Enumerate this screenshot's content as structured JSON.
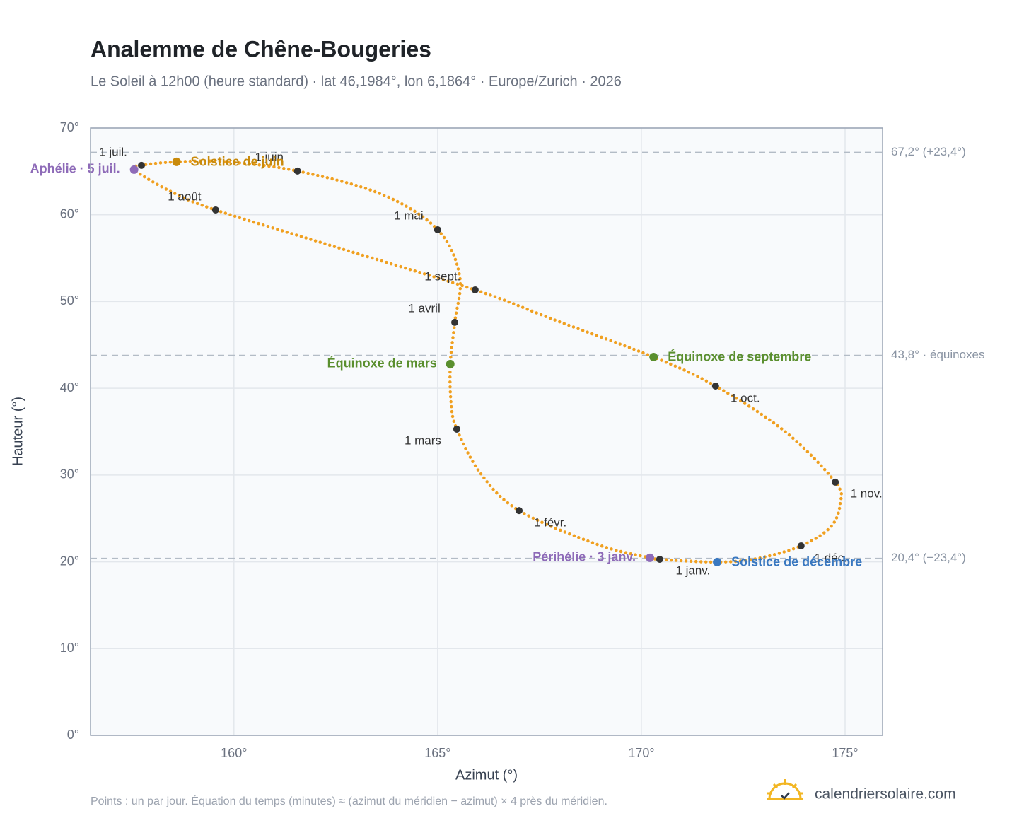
{
  "chart_data": {
    "type": "scatter",
    "title": "Analemme de Chêne-Bougeries",
    "subtitle": "Le Soleil à 12h00 (heure standard) · lat 46,1984°, lon 6,1864° · Europe/Zurich · 2026",
    "x_label": "Azimut (°)",
    "y_label": "Hauteur (°)",
    "footnote": "Points : un par jour. Équation du temps (minutes) ≈ (azimut du méridien − azimut) × 4 près du méridien.",
    "brand": "calendriersolaire.com",
    "xlim": [
      156.48,
      175.92
    ],
    "ylim": [
      0,
      70
    ],
    "xticks": [
      {
        "value": 160,
        "label": "160°"
      },
      {
        "value": 165,
        "label": "165°"
      },
      {
        "value": 170,
        "label": "170°"
      },
      {
        "value": 175,
        "label": "175°"
      }
    ],
    "yticks": [
      {
        "value": 0,
        "label": "0°"
      },
      {
        "value": 10,
        "label": "10°"
      },
      {
        "value": 20,
        "label": "20°"
      },
      {
        "value": 30,
        "label": "30°"
      },
      {
        "value": 40,
        "label": "40°"
      },
      {
        "value": 50,
        "label": "50°"
      },
      {
        "value": 60,
        "label": "60°"
      },
      {
        "value": 70,
        "label": "70°"
      }
    ],
    "grid": true,
    "series": [
      {
        "color": "#f0a020",
        "x": [
          170.45,
          170.21,
          168.92,
          167.0,
          166.06,
          165.47,
          165.33,
          165.31,
          165.42,
          165.54,
          165.0,
          163.63,
          161.56,
          159.81,
          158.59,
          157.73,
          157.55,
          158.42,
          159.55,
          162.59,
          165.92,
          167.97,
          170.3,
          171.82,
          173.52,
          174.76,
          174.88,
          174.65,
          173.92,
          172.83,
          171.86,
          170.55
        ],
        "y": [
          20.29,
          20.46,
          22.0,
          25.9,
          30.15,
          35.29,
          38.3,
          42.79,
          47.6,
          52.97,
          58.27,
          62.35,
          65.04,
          66.1,
          66.1,
          65.69,
          65.2,
          62.75,
          60.55,
          56.15,
          51.34,
          47.7,
          43.6,
          40.26,
          35.04,
          29.18,
          26.73,
          24.04,
          21.84,
          20.37,
          19.97,
          20.25
        ]
      }
    ],
    "markers": [
      {
        "label": "1 janv.",
        "x": 170.45,
        "y": 20.29,
        "color": "#333333"
      },
      {
        "label": "1 févr.",
        "x": 167.0,
        "y": 25.9,
        "color": "#333333"
      },
      {
        "label": "1 mars",
        "x": 165.47,
        "y": 35.29,
        "color": "#333333"
      },
      {
        "label": "1 avril",
        "x": 165.42,
        "y": 47.6,
        "color": "#333333"
      },
      {
        "label": "1 mai",
        "x": 165.0,
        "y": 58.27,
        "color": "#333333"
      },
      {
        "label": "1 juin",
        "x": 161.56,
        "y": 65.04,
        "color": "#333333"
      },
      {
        "label": "1 juil.",
        "x": 157.73,
        "y": 65.69,
        "color": "#333333"
      },
      {
        "label": "1 août",
        "x": 159.55,
        "y": 60.55,
        "color": "#333333"
      },
      {
        "label": "1 sept.",
        "x": 165.92,
        "y": 51.34,
        "color": "#333333"
      },
      {
        "label": "1 oct.",
        "x": 171.82,
        "y": 40.26,
        "color": "#333333"
      },
      {
        "label": "1 nov.",
        "x": 174.76,
        "y": 29.18,
        "color": "#333333"
      },
      {
        "label": "1 déc.",
        "x": 173.92,
        "y": 21.84,
        "color": "#333333"
      },
      {
        "label": "Aphélie · 5 juil.",
        "x": 157.55,
        "y": 65.2,
        "color": "#8e6bb8"
      },
      {
        "label": "Solstice de juin",
        "x": 158.59,
        "y": 66.1,
        "color": "#c98a0b"
      },
      {
        "label": "Équinoxe de mars",
        "x": 165.31,
        "y": 42.79,
        "color": "#5a8f2e"
      },
      {
        "label": "Équinoxe de septembre",
        "x": 170.3,
        "y": 43.6,
        "color": "#5a8f2e"
      },
      {
        "label": "Périhélie · 3 janv.",
        "x": 170.21,
        "y": 20.46,
        "color": "#8e6bb8"
      },
      {
        "label": "Solstice de décembre",
        "x": 171.86,
        "y": 19.97,
        "color": "#3a78c0"
      }
    ],
    "ref_lines": [
      {
        "value": 67.2,
        "label": "67,2° (+23,4°)"
      },
      {
        "value": 43.8,
        "label": "43,8° · équinoxes"
      },
      {
        "value": 20.4,
        "label": "20,4° (−23,4°)"
      }
    ]
  }
}
